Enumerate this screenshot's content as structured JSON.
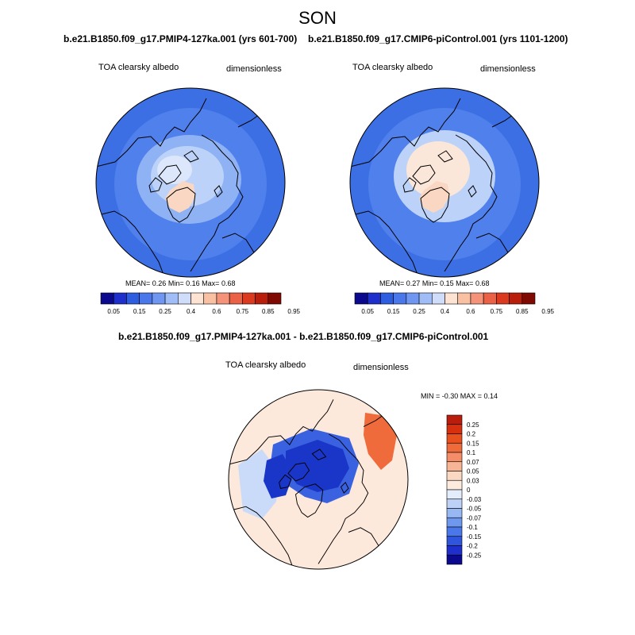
{
  "figure": {
    "title": "SON"
  },
  "panels": [
    {
      "title": "b.e21.B1850.f09_g17.PMIP4-127ka.001 (yrs 601-700)",
      "left_label": "TOA clearsky albedo",
      "right_label": "dimensionless",
      "mean_label": "MEAN=",
      "mean": "0.26",
      "min_label": "Min=",
      "min": "0.16",
      "max_label": "Max=",
      "max": "0.68"
    },
    {
      "title": "b.e21.B1850.f09_g17.CMIP6-piControl.001 (yrs 1101-1200)",
      "left_label": "TOA clearsky albedo",
      "right_label": "dimensionless",
      "mean_label": "MEAN=",
      "mean": "0.27",
      "min_label": "Min=",
      "min": "0.15",
      "max_label": "Max=",
      "max": "0.68"
    },
    {
      "title": "b.e21.B1850.f09_g17.PMIP4-127ka.001 - b.e21.B1850.f09_g17.CMIP6-piControl.001",
      "left_label": "TOA clearsky albedo",
      "right_label": "dimensionless",
      "minmax": "MIN =  -0.30 MAX =   0.14"
    }
  ],
  "colorbar_abs": {
    "levels": [
      "0.05",
      "0.15",
      "0.25",
      "0.4",
      "0.6",
      "0.75",
      "0.85",
      "0.95"
    ],
    "colors": [
      "#0b0a8e",
      "#1f2fcc",
      "#2f5de0",
      "#4a77ea",
      "#6f97f2",
      "#a0bdf7",
      "#cfddfa",
      "#fde3d2",
      "#f9c0a4",
      "#f4937a",
      "#ea6146",
      "#dc3a1e",
      "#b81e0b",
      "#7f0a04"
    ]
  },
  "colorbar_diff": {
    "levels": [
      "0.25",
      "0.2",
      "0.15",
      "0.1",
      "0.07",
      "0.05",
      "0.03",
      "0",
      "-0.03",
      "-0.05",
      "-0.07",
      "-0.1",
      "-0.15",
      "-0.2",
      "-0.25"
    ],
    "colors": [
      "#b81e0b",
      "#d6300f",
      "#e8511e",
      "#ef6b3b",
      "#f58d68",
      "#f8b595",
      "#fbd8c2",
      "#fdebde",
      "#e3edfb",
      "#bed2f7",
      "#97b8f3",
      "#6e97ee",
      "#4a77ea",
      "#2f55dd",
      "#1f2fcc",
      "#0b0a8e"
    ]
  },
  "map_colors": {
    "ocean_low": "#3c6fe4",
    "ocean_mid": "#4f80ec",
    "ice_edge": "#8fb2f4",
    "ice_light": "#bcd2f8",
    "ice_pale": "#dde7fb",
    "greenland": "#f9d7c2",
    "arctic_cream": "#fbe7da",
    "diff_bg": "#fde8dc",
    "diff_blue_dark": "#1a36c8",
    "diff_blue_mid": "#3a62e0",
    "diff_blue_light": "#c9dbf8",
    "diff_red": "#ef6b3b"
  }
}
